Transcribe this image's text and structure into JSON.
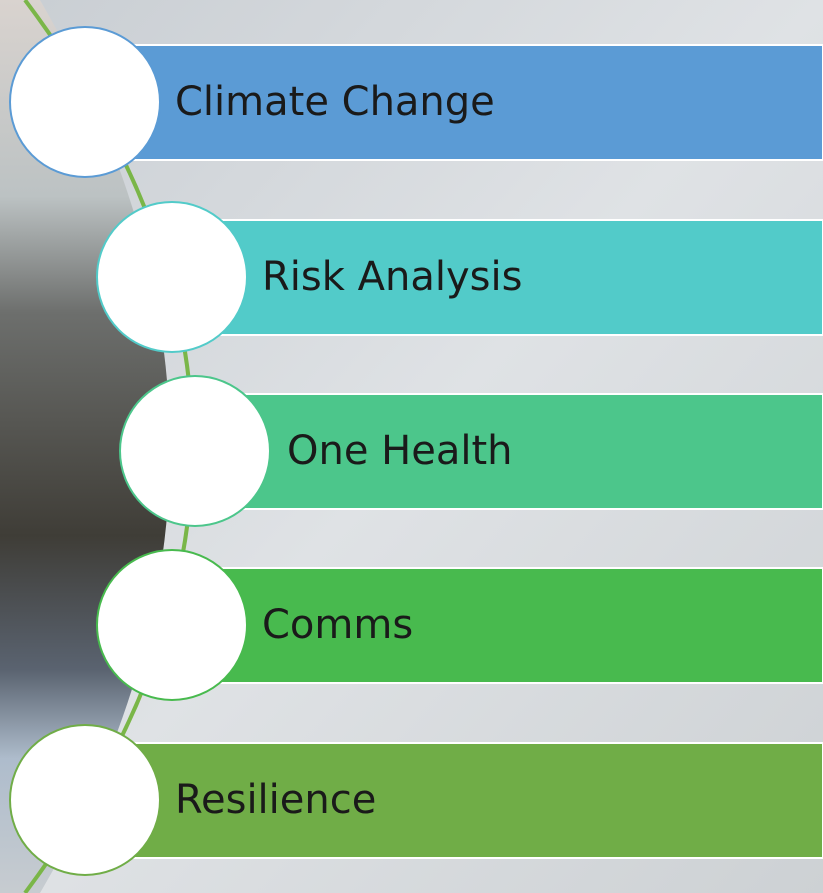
{
  "items": [
    {
      "label": "Climate Change"
    },
    {
      "label": "Risk Analysis"
    },
    {
      "label": "One Health"
    },
    {
      "label": "Comms"
    },
    {
      "label": "Resilience"
    }
  ]
}
